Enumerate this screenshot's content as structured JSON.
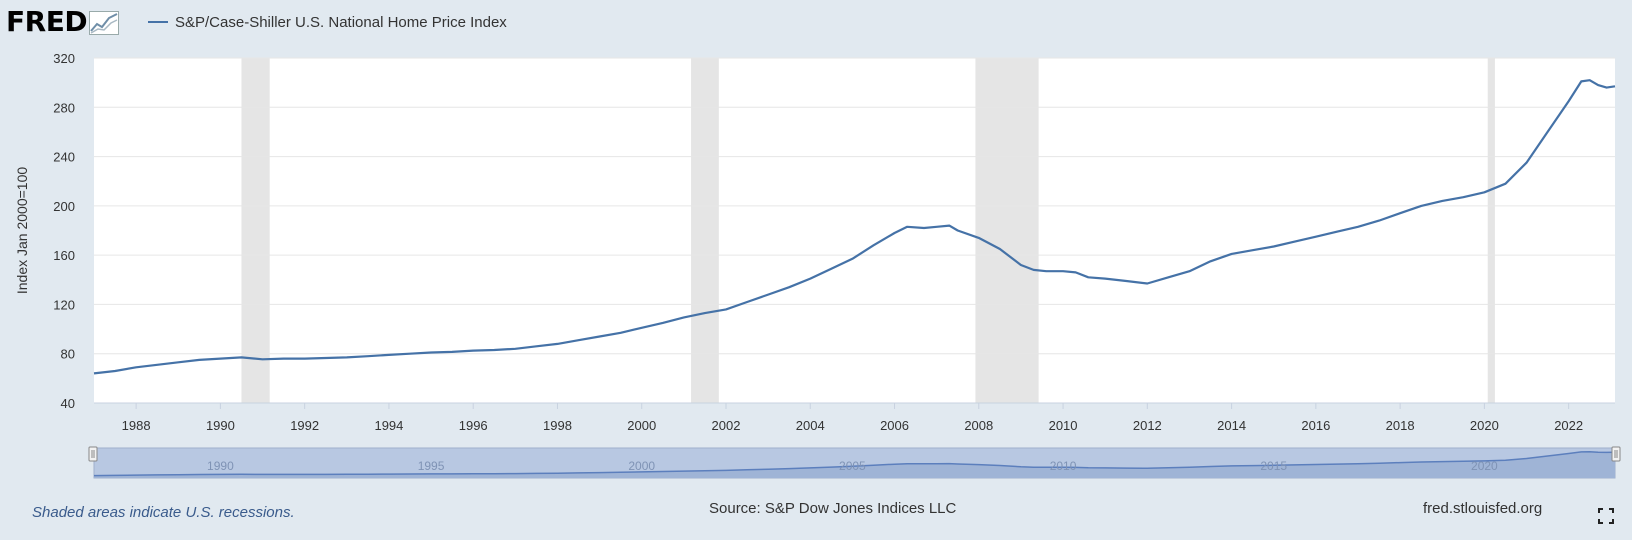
{
  "header": {
    "logo_text": "FRED",
    "logo_icon": "chart-line-icon"
  },
  "legend": {
    "label": "S&P/Case-Shiller U.S. National Home Price Index",
    "color": "#4572a7"
  },
  "colors": {
    "line": "#4572a7",
    "plot_bg": "#ffffff",
    "page_bg": "#e1e9f0",
    "recession": "#e5e5e5",
    "navigator_fill": "#9fb4d6",
    "navigator_window": "#b8c8e2",
    "navigator_line": "#5c7fbd"
  },
  "chart_data": {
    "type": "line",
    "title": "S&P/Case-Shiller U.S. National Home Price Index",
    "ylabel": "Index Jan 2000=100",
    "xlabel": "",
    "xlim": [
      1987.0,
      2023.1
    ],
    "ylim": [
      40,
      320
    ],
    "yticks": [
      40,
      80,
      120,
      160,
      200,
      240,
      280,
      320
    ],
    "xticks": [
      1988,
      1990,
      1992,
      1994,
      1996,
      1998,
      2000,
      2002,
      2004,
      2006,
      2008,
      2010,
      2012,
      2014,
      2016,
      2018,
      2020,
      2022
    ],
    "grid": true,
    "legend_position": "top-left",
    "recessions": [
      [
        1990.5,
        1991.17
      ],
      [
        2001.17,
        2001.83
      ],
      [
        2007.92,
        2009.42
      ],
      [
        2020.08,
        2020.25
      ]
    ],
    "series": [
      {
        "name": "S&P/Case-Shiller U.S. National Home Price Index",
        "x": [
          1987.0,
          1987.5,
          1988.0,
          1988.5,
          1989.0,
          1989.5,
          1990.0,
          1990.5,
          1991.0,
          1991.5,
          1992.0,
          1992.5,
          1993.0,
          1993.5,
          1994.0,
          1994.5,
          1995.0,
          1995.5,
          1996.0,
          1996.5,
          1997.0,
          1997.5,
          1998.0,
          1998.5,
          1999.0,
          1999.5,
          2000.0,
          2000.5,
          2001.0,
          2001.5,
          2002.0,
          2002.5,
          2003.0,
          2003.5,
          2004.0,
          2004.5,
          2005.0,
          2005.5,
          2006.0,
          2006.3,
          2006.7,
          2007.0,
          2007.3,
          2007.5,
          2008.0,
          2008.5,
          2009.0,
          2009.3,
          2009.6,
          2010.0,
          2010.3,
          2010.6,
          2011.0,
          2011.5,
          2012.0,
          2012.5,
          2013.0,
          2013.5,
          2014.0,
          2014.5,
          2015.0,
          2015.5,
          2016.0,
          2016.5,
          2017.0,
          2017.5,
          2018.0,
          2018.5,
          2019.0,
          2019.5,
          2020.0,
          2020.5,
          2021.0,
          2021.5,
          2022.0,
          2022.3,
          2022.5,
          2022.7,
          2022.9,
          2023.1
        ],
        "values": [
          64,
          66,
          69,
          71,
          73,
          75,
          76,
          77,
          75.5,
          76,
          76,
          76.5,
          77,
          78,
          79,
          80,
          81,
          81.5,
          82.5,
          83,
          84,
          86,
          88,
          91,
          94,
          97,
          101,
          105,
          109.5,
          113,
          116,
          122,
          128,
          134,
          141,
          149,
          157,
          168,
          178,
          183,
          182,
          183,
          184,
          180,
          174,
          165,
          152,
          148,
          147,
          147,
          146,
          142,
          141,
          139,
          137,
          142,
          147,
          155,
          161,
          164,
          167,
          171,
          175,
          179,
          183,
          188,
          194,
          200,
          204,
          207,
          211,
          218,
          235,
          260,
          285,
          301,
          302,
          298,
          296,
          297
        ]
      }
    ],
    "navigator_ticks": [
      1990,
      1995,
      2000,
      2005,
      2010,
      2015,
      2020
    ]
  },
  "footer": {
    "note": "Shaded areas indicate U.S. recessions.",
    "source": "Source: S&P Dow Jones Indices LLC",
    "url": "fred.stlouisfed.org",
    "fullscreen_icon": "fullscreen-icon"
  }
}
